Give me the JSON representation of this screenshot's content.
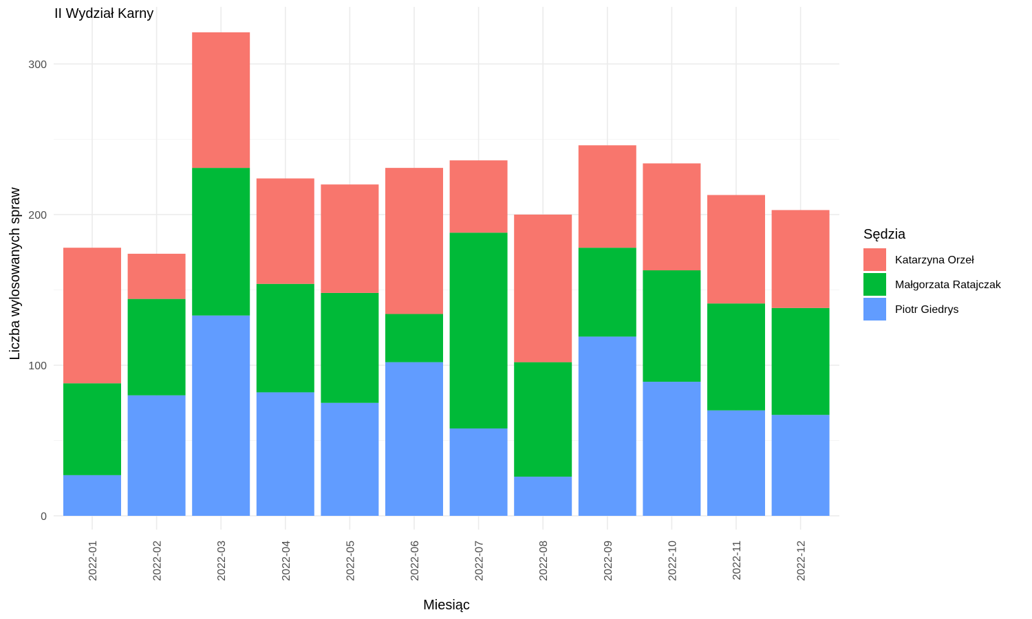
{
  "chart_data": {
    "type": "bar",
    "stacked": true,
    "title": "II Wydział Karny",
    "xlabel": "Miesiąc",
    "ylabel": "Liczba wylosowanych spraw",
    "ylim": [
      0,
      320
    ],
    "yticks": [
      0,
      100,
      200,
      300
    ],
    "grid": true,
    "legend": {
      "title": "Sędzia",
      "position": "right"
    },
    "categories": [
      "2022-01",
      "2022-02",
      "2022-03",
      "2022-04",
      "2022-05",
      "2022-06",
      "2022-07",
      "2022-08",
      "2022-09",
      "2022-10",
      "2022-11",
      "2022-12"
    ],
    "series": [
      {
        "name": "Piotr Giedrys",
        "color": "#619CFF",
        "values": [
          27,
          80,
          133,
          82,
          75,
          102,
          58,
          26,
          119,
          89,
          70,
          67
        ]
      },
      {
        "name": "Małgorzata Ratajczak",
        "color": "#00BA38",
        "values": [
          61,
          64,
          98,
          72,
          73,
          32,
          130,
          76,
          59,
          74,
          71,
          71
        ]
      },
      {
        "name": "Katarzyna Orzeł",
        "color": "#F8766D",
        "values": [
          90,
          30,
          90,
          70,
          72,
          97,
          48,
          98,
          68,
          71,
          72,
          65
        ]
      }
    ],
    "legend_order": [
      "Katarzyna Orzeł",
      "Małgorzata Ratajczak",
      "Piotr Giedrys"
    ]
  }
}
